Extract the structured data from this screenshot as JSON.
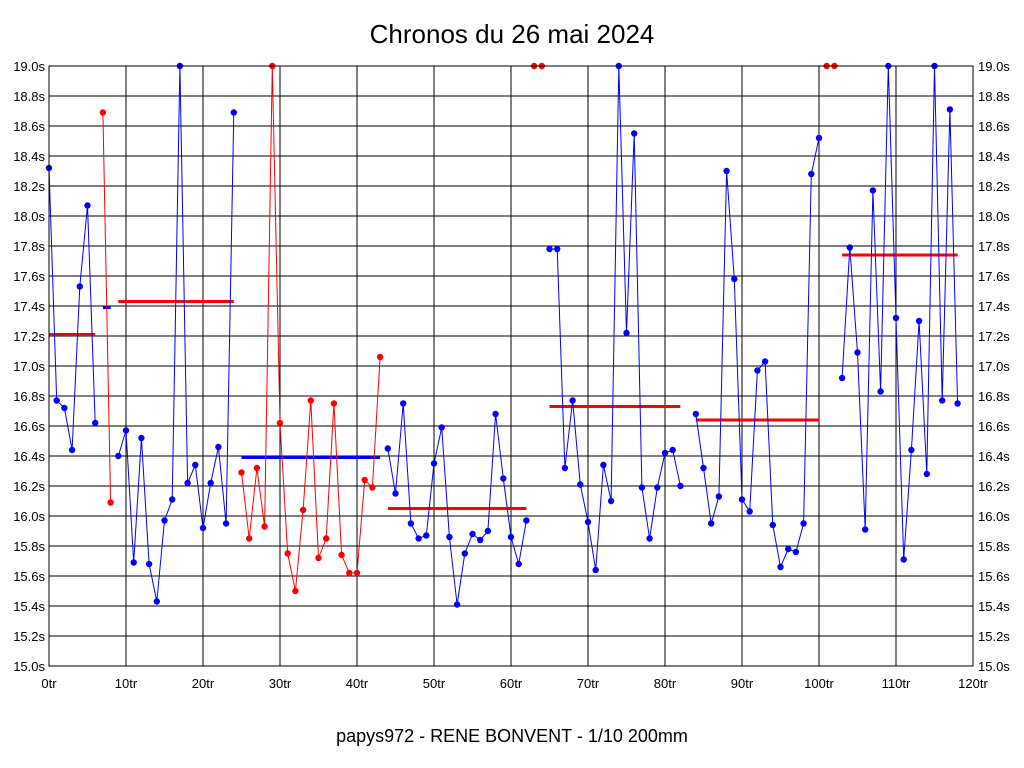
{
  "chart_data": {
    "type": "line",
    "title": "Chronos du 26 mai 2024",
    "subtitle": "papys972 - RENE BONVENT - 1/10 200mm",
    "xlabel": "",
    "ylabel": "",
    "xlim": [
      0,
      120
    ],
    "ylim": [
      15.0,
      19.0
    ],
    "x_ticks": [
      0,
      10,
      20,
      30,
      40,
      50,
      60,
      70,
      80,
      90,
      100,
      110,
      120
    ],
    "x_tick_labels": [
      "0tr",
      "10tr",
      "20tr",
      "30tr",
      "40tr",
      "50tr",
      "60tr",
      "70tr",
      "80tr",
      "90tr",
      "100tr",
      "110tr",
      "120tr"
    ],
    "y_ticks": [
      15.0,
      15.2,
      15.4,
      15.6,
      15.8,
      16.0,
      16.2,
      16.4,
      16.6,
      16.8,
      17.0,
      17.2,
      17.4,
      17.6,
      17.8,
      18.0,
      18.2,
      18.4,
      18.6,
      18.8,
      19.0
    ],
    "y_tick_labels": [
      "15.0s",
      "15.2s",
      "15.4s",
      "15.6s",
      "15.8s",
      "16.0s",
      "16.2s",
      "16.4s",
      "16.6s",
      "16.8s",
      "17.0s",
      "17.2s",
      "17.4s",
      "17.6s",
      "17.8s",
      "18.0s",
      "18.2s",
      "18.4s",
      "18.6s",
      "18.8s",
      "19.0s"
    ],
    "grid": true,
    "series": [
      {
        "name": "run1",
        "color": "#0000ff",
        "x": [
          0,
          1,
          2,
          3,
          4,
          5,
          6
        ],
        "values": [
          18.32,
          16.77,
          16.72,
          16.44,
          17.53,
          18.07,
          16.62
        ]
      },
      {
        "name": "run2",
        "color": "#ff0000",
        "x": [
          7,
          8
        ],
        "values": [
          18.69,
          16.09
        ]
      },
      {
        "name": "run3",
        "color": "#0000ff",
        "x": [
          9,
          10,
          11,
          12,
          13,
          14,
          15,
          16,
          17,
          18,
          19,
          20,
          21,
          22,
          23,
          24
        ],
        "values": [
          16.4,
          16.57,
          15.69,
          16.52,
          15.68,
          15.43,
          15.97,
          16.11,
          19.0,
          16.22,
          16.34,
          15.92,
          16.22,
          16.46,
          15.95,
          18.69
        ]
      },
      {
        "name": "run4",
        "color": "#ff0000",
        "x": [
          25,
          26,
          27,
          28,
          29,
          30,
          31,
          32,
          33,
          34,
          35,
          36,
          37,
          38,
          39,
          40,
          41,
          42,
          43
        ],
        "values": [
          16.29,
          15.85,
          16.32,
          15.93,
          19.0,
          16.62,
          15.75,
          15.5,
          16.04,
          16.77,
          15.72,
          15.85,
          16.75,
          15.74,
          15.62,
          15.62,
          16.24,
          16.19,
          17.06
        ]
      },
      {
        "name": "run5",
        "color": "#0000ff",
        "x": [
          44,
          45,
          46,
          47,
          48,
          49,
          50,
          51,
          52,
          53,
          54,
          55,
          56,
          57,
          58,
          59,
          60,
          61,
          62
        ],
        "values": [
          16.45,
          16.15,
          16.75,
          15.95,
          15.85,
          15.87,
          16.35,
          16.59,
          15.86,
          15.41,
          15.75,
          15.88,
          15.84,
          15.9,
          16.68,
          16.25,
          15.86,
          15.68,
          15.97
        ]
      },
      {
        "name": "run6",
        "color": "#ff0000",
        "x": [
          63,
          64
        ],
        "values": [
          19.0,
          19.0
        ]
      },
      {
        "name": "run7",
        "color": "#0000ff",
        "x": [
          65,
          66,
          67,
          68,
          69,
          70,
          71,
          72,
          73,
          74,
          75,
          76,
          77,
          78,
          79,
          80,
          81,
          82
        ],
        "values": [
          17.78,
          17.78,
          16.32,
          16.77,
          16.21,
          15.96,
          15.64,
          16.34,
          16.1,
          19.0,
          17.22,
          18.55,
          16.19,
          15.85,
          16.19,
          16.42,
          16.44,
          16.2
        ]
      },
      {
        "name": "run8",
        "color": "#0000ff",
        "x": [
          84,
          85,
          86,
          87,
          88,
          89,
          90,
          91,
          92,
          93,
          94,
          95,
          96,
          97,
          98,
          99,
          100
        ],
        "values": [
          16.68,
          16.32,
          15.95,
          16.13,
          18.3,
          17.58,
          16.11,
          16.03,
          16.97,
          17.03,
          15.94,
          15.66,
          15.78,
          15.76,
          15.95,
          18.28,
          18.52
        ]
      },
      {
        "name": "run9",
        "color": "#ff0000",
        "x": [
          101,
          102
        ],
        "values": [
          19.0,
          19.0
        ]
      },
      {
        "name": "run10",
        "color": "#0000ff",
        "x": [
          103,
          104,
          105,
          106,
          107,
          108,
          109,
          110,
          111,
          112,
          113,
          114,
          115,
          116,
          117,
          118
        ],
        "values": [
          16.92,
          17.79,
          17.09,
          15.91,
          18.17,
          16.83,
          19.0,
          17.32,
          15.71,
          16.44,
          17.3,
          16.28,
          19.0,
          16.77,
          18.71,
          16.75
        ]
      }
    ],
    "averages": [
      {
        "color": "#ff0000",
        "x_start": 0,
        "x_end": 6,
        "value": 17.21
      },
      {
        "color": "#0000ff",
        "x_start": 7,
        "x_end": 8,
        "value": 17.39
      },
      {
        "color": "#ff0000",
        "x_start": 9,
        "x_end": 24,
        "value": 17.43
      },
      {
        "color": "#0000ff",
        "x_start": 25,
        "x_end": 43,
        "value": 16.39
      },
      {
        "color": "#ff0000",
        "x_start": 44,
        "x_end": 62,
        "value": 16.05
      },
      {
        "color": "#ff0000",
        "x_start": 65,
        "x_end": 82,
        "value": 16.73
      },
      {
        "color": "#ff0000",
        "x_start": 84,
        "x_end": 100,
        "value": 16.64
      },
      {
        "color": "#ff0000",
        "x_start": 103,
        "x_end": 118,
        "value": 17.74
      }
    ]
  }
}
